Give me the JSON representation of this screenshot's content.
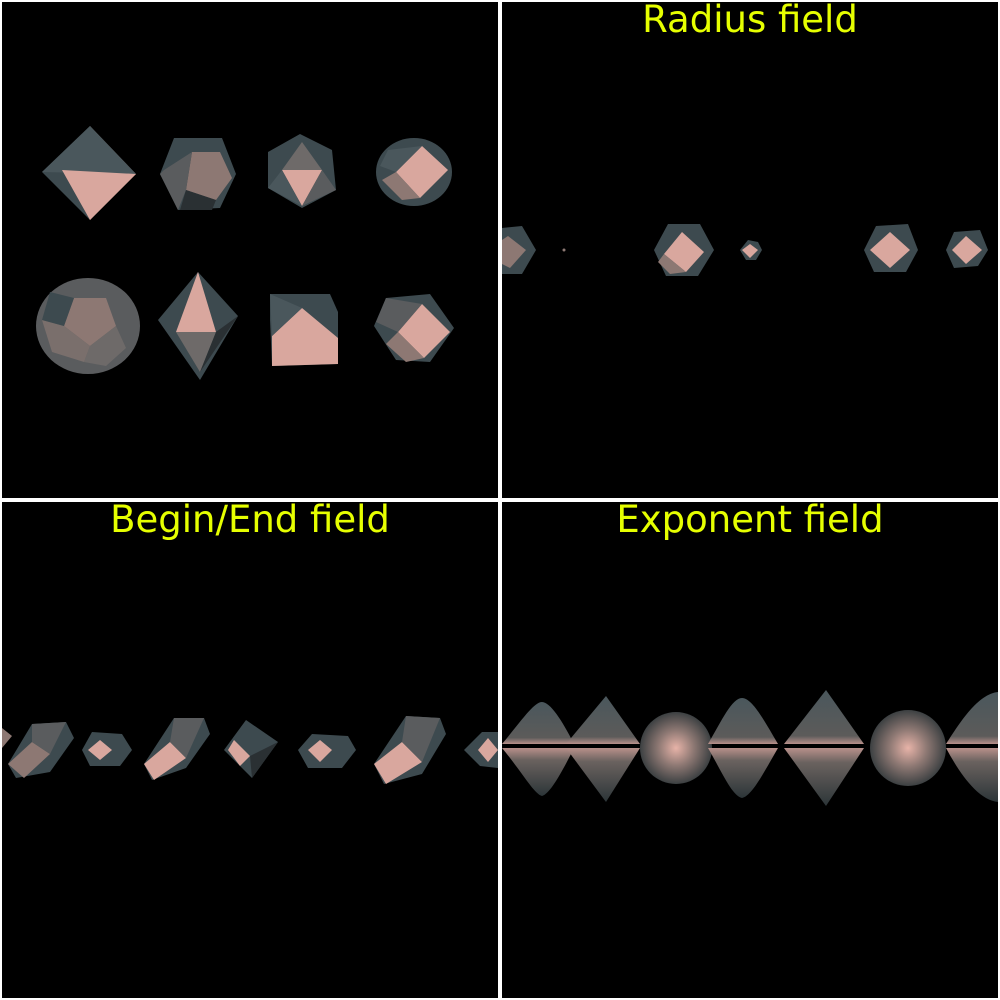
{
  "viewports": [
    {
      "id": "shapes",
      "title": ""
    },
    {
      "id": "radius",
      "title": "Radius field"
    },
    {
      "id": "begin-end",
      "title": "Begin/End field"
    },
    {
      "id": "exponent",
      "title": "Exponent field"
    }
  ],
  "colors": {
    "background": "#000000",
    "divider": "#ffffff",
    "title": "#e6ff00",
    "face_light": "#d9a79e",
    "face_mid": "#8d7873",
    "face_dark": "#3d4a4f",
    "face_shadow": "#1e2326"
  }
}
